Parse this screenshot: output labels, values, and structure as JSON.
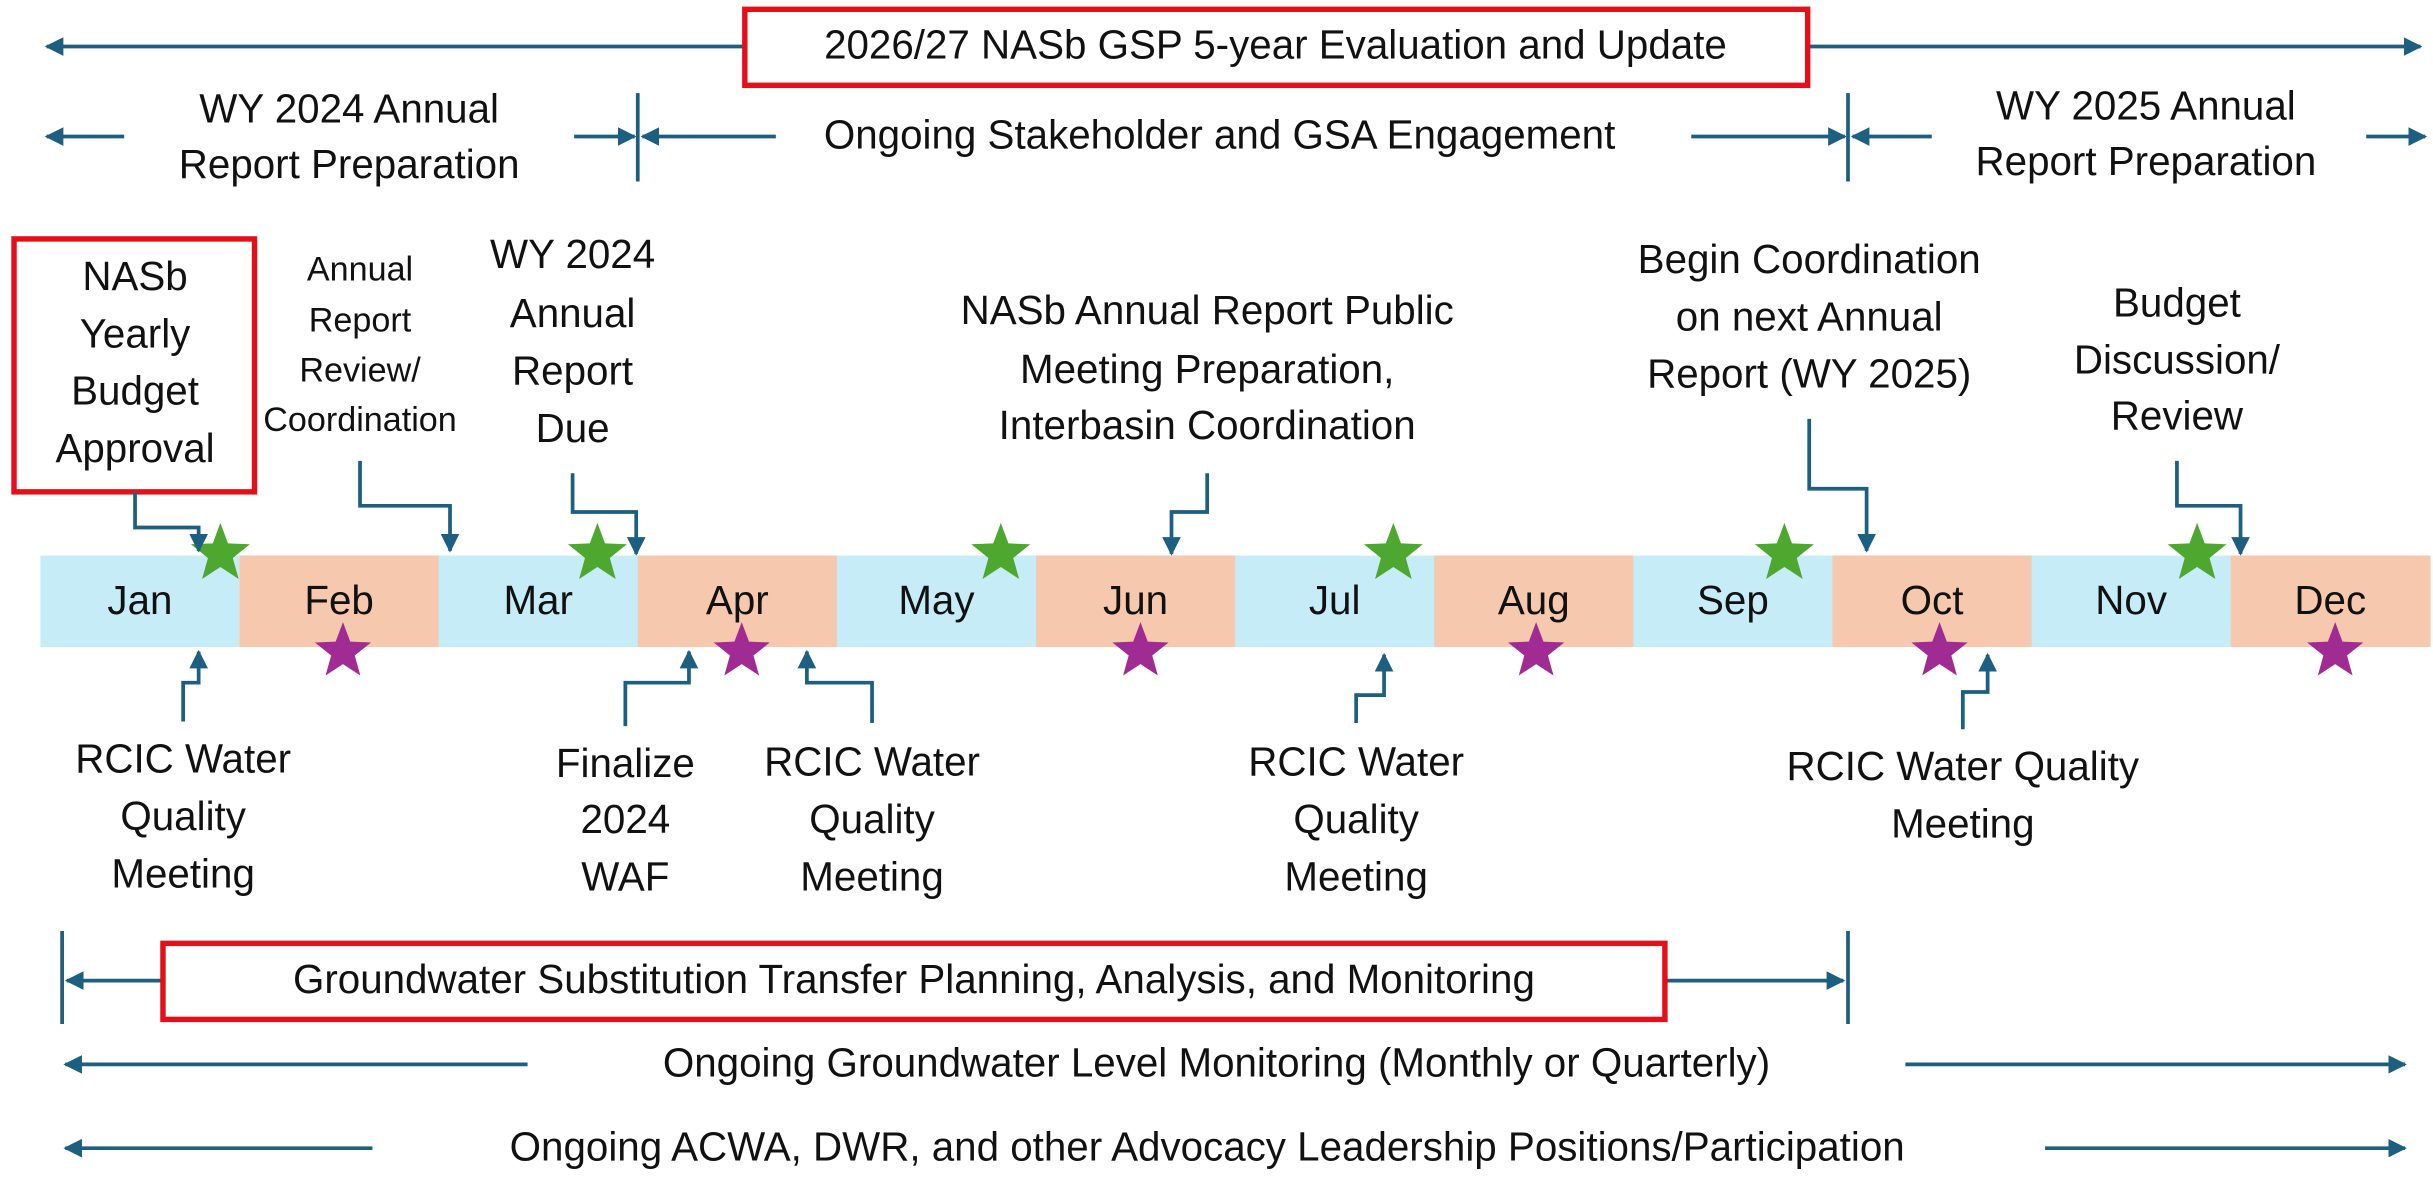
{
  "top_banner": "2026/27 NASb GSP 5-year Evaluation and Update",
  "phases": [
    {
      "lines": [
        "WY 2024 Annual",
        "Report Preparation"
      ]
    },
    {
      "lines": [
        "Ongoing Stakeholder and GSA Engagement"
      ]
    },
    {
      "lines": [
        "WY 2025 Annual",
        "Report Preparation"
      ]
    }
  ],
  "months": [
    "Jan",
    "Feb",
    "Mar",
    "Apr",
    "May",
    "Jun",
    "Jul",
    "Aug",
    "Sep",
    "Oct",
    "Nov",
    "Dec"
  ],
  "events_above": [
    {
      "lines": [
        "NASb",
        "Yearly",
        "Budget",
        "Approval"
      ]
    },
    {
      "lines": [
        "Annual",
        "Report",
        "Review/",
        "Coordination"
      ]
    },
    {
      "lines": [
        "WY 2024",
        "Annual",
        "Report",
        "Due"
      ]
    },
    {
      "lines": [
        "NASb Annual Report Public",
        "Meeting Preparation,",
        "Interbasin Coordination"
      ]
    },
    {
      "lines": [
        "Begin Coordination",
        "on next Annual",
        "Report (WY 2025)"
      ]
    },
    {
      "lines": [
        "Budget",
        "Discussion/",
        "Review"
      ]
    }
  ],
  "events_below": [
    {
      "lines": [
        "RCIC Water",
        "Quality",
        "Meeting"
      ]
    },
    {
      "lines": [
        "Finalize",
        "2024",
        "WAF"
      ]
    },
    {
      "lines": [
        "RCIC Water",
        "Quality",
        "Meeting"
      ]
    },
    {
      "lines": [
        "RCIC Water",
        "Quality",
        "Meeting"
      ]
    },
    {
      "lines": [
        "RCIC Water Quality",
        "Meeting"
      ]
    }
  ],
  "bottom_bars": [
    "Groundwater Substitution Transfer Planning, Analysis, and Monitoring",
    "Ongoing Groundwater Level Monitoring (Monthly or Quarterly)",
    "Ongoing ACWA, DWR, and other Advocacy Leadership Positions/Participation"
  ]
}
